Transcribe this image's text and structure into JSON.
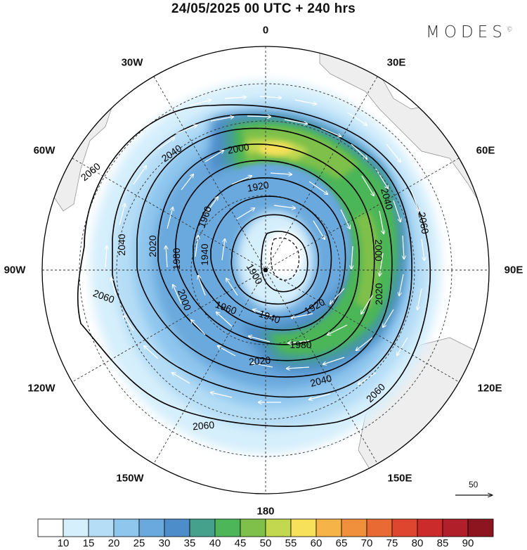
{
  "title": "24/05/2025  00 UTC  + 240 hrs",
  "brand": "MODES",
  "brand_mark": "©",
  "longitude_labels": {
    "n0": "0",
    "n30e": "30E",
    "n60e": "60E",
    "n90e": "90E",
    "n120e": "120E",
    "n150e": "150E",
    "n180": "180",
    "n150w": "150W",
    "n120w": "120W",
    "n90w": "90W",
    "n60w": "60W",
    "n30w": "30W"
  },
  "contour_labels": [
    "2060",
    "2040",
    "2020",
    "2000",
    "1980",
    "1960",
    "1940",
    "1920",
    "1900"
  ],
  "vector_scale_label": "50",
  "colorbar": {
    "ticks": [
      "10",
      "15",
      "20",
      "25",
      "30",
      "35",
      "40",
      "45",
      "50",
      "55",
      "60",
      "65",
      "70",
      "75",
      "80",
      "85",
      "90"
    ],
    "colors": [
      "#ffffff",
      "#d6effc",
      "#b5ddf6",
      "#8fc6ee",
      "#6aa9dd",
      "#4d8dca",
      "#45a08c",
      "#4cb659",
      "#7ec04a",
      "#c2d84f",
      "#f7e05a",
      "#f5b348",
      "#f08f3c",
      "#ea6a33",
      "#de4630",
      "#cc2b2b",
      "#b01f2a",
      "#8c1520"
    ]
  },
  "colors": {
    "land": "#eeeeee",
    "contour": "#000000",
    "vector": "#ffffff"
  }
}
